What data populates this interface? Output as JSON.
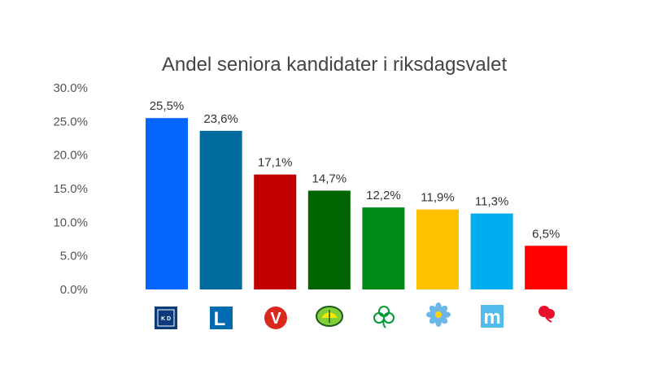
{
  "chart_data": {
    "type": "bar",
    "title": "Andel seniora kandidater i riksdagsvalet",
    "xlabel": "",
    "ylabel": "",
    "ylim": [
      0,
      30
    ],
    "yticks": [
      "0.0%",
      "5.0%",
      "10.0%",
      "15.0%",
      "20.0%",
      "25.0%",
      "30.0%"
    ],
    "grid": false,
    "legend": "none",
    "categories": [
      "KD",
      "L",
      "V",
      "MP",
      "C",
      "SD",
      "M",
      "S"
    ],
    "values": [
      25.5,
      23.6,
      17.1,
      14.7,
      12.2,
      11.9,
      11.3,
      6.5
    ],
    "data_labels": [
      "25,5%",
      "23,6%",
      "17,1%",
      "14,7%",
      "12,2%",
      "11,9%",
      "11,3%",
      "6,5%"
    ],
    "colors": [
      "#0565ff",
      "#006c9e",
      "#c20000",
      "#006400",
      "#008a18",
      "#ffc000",
      "#00aef0",
      "#ff0000"
    ],
    "category_icons": [
      "kd-logo-icon",
      "liberalerna-logo-icon",
      "vansterpartiet-logo-icon",
      "miljopartiet-logo-icon",
      "centerpartiet-logo-icon",
      "sverigedemokraterna-logo-icon",
      "moderaterna-logo-icon",
      "socialdemokraterna-logo-icon"
    ],
    "logo_text": {
      "kd": "K D",
      "l": "L",
      "v": "V",
      "m": "m"
    }
  }
}
